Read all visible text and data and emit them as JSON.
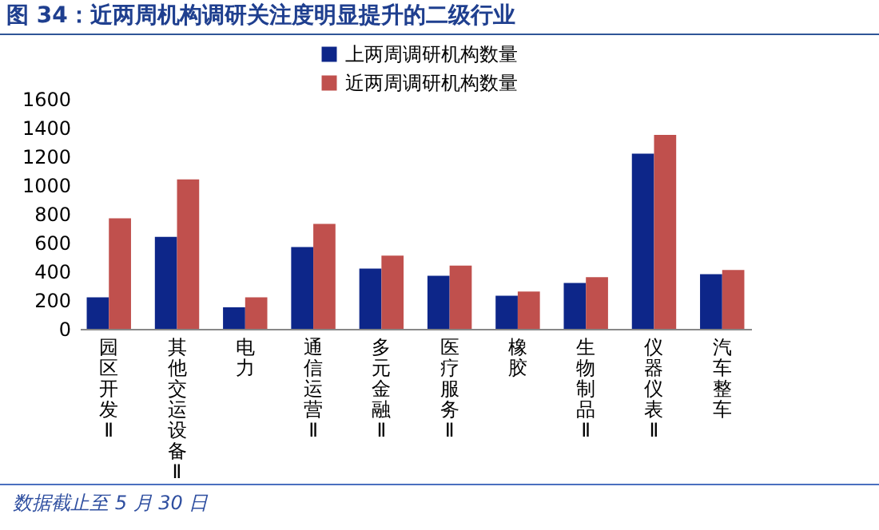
{
  "chart_data": {
    "type": "bar",
    "title": "图 34：近两周机构调研关注度明显提升的二级行业",
    "categories": [
      "园区开发Ⅱ",
      "其他交运设备Ⅱ",
      "电力",
      "通信运营Ⅱ",
      "多元金融Ⅱ",
      "医疗服务Ⅱ",
      "橡胶",
      "生物制品Ⅱ",
      "仪器仪表Ⅱ",
      "汽车整车"
    ],
    "series": [
      {
        "name": "上两周调研机构数量",
        "color": "#0d2689",
        "values": [
          220,
          640,
          150,
          570,
          420,
          370,
          230,
          320,
          1220,
          380
        ]
      },
      {
        "name": "近两周调研机构数量",
        "color": "#c0504d",
        "values": [
          770,
          1040,
          220,
          730,
          510,
          440,
          260,
          360,
          1350,
          410
        ]
      }
    ],
    "ylim": [
      0,
      1600
    ],
    "yticks": [
      0,
      200,
      400,
      600,
      800,
      1000,
      1200,
      1400,
      1600
    ],
    "legend": "top right",
    "annotations": [
      "数据截止至 5 月 30 日"
    ]
  }
}
